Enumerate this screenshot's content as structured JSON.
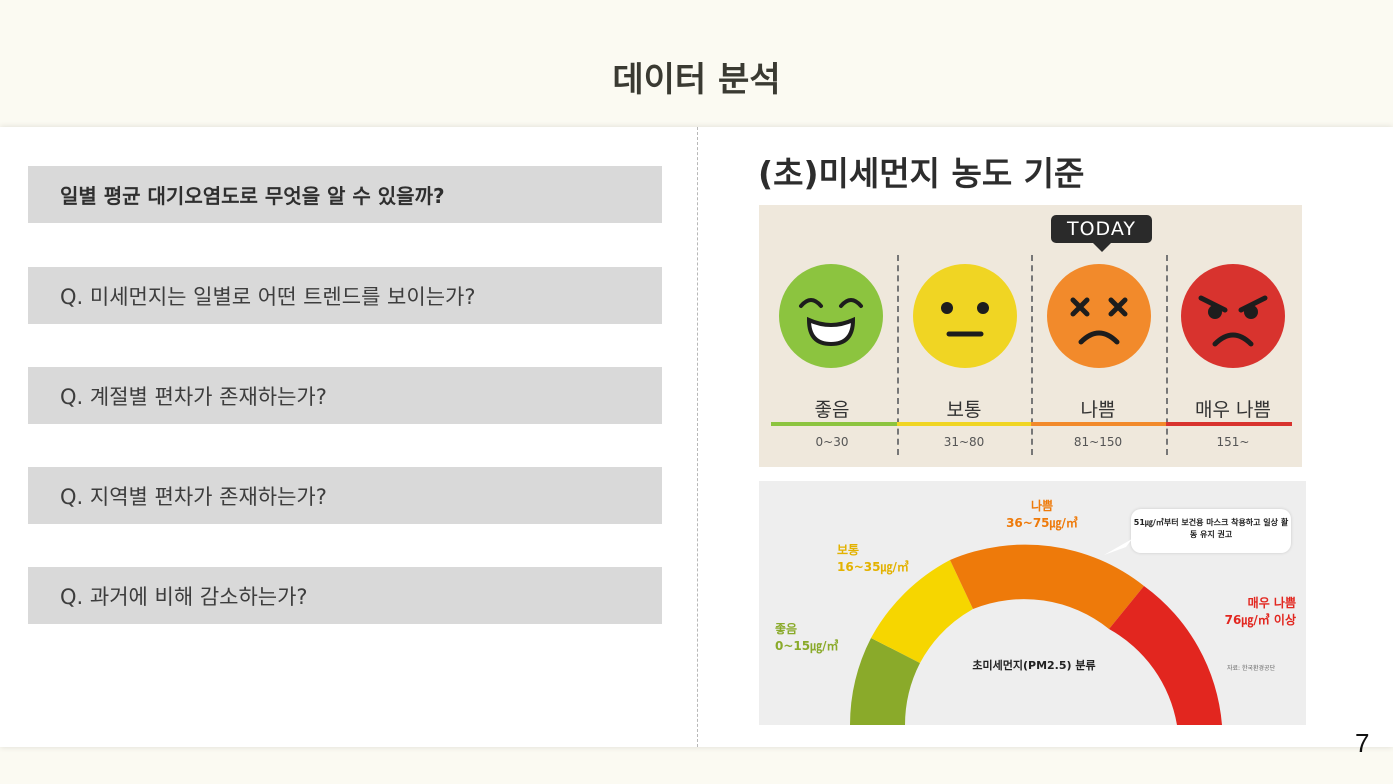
{
  "slide": {
    "title": "데이터 분석",
    "page_number": "7"
  },
  "left": {
    "heading": "일별 평균 대기오염도로 무엇을 알 수 있을까?",
    "questions": [
      "Q. 미세먼지는 일별로 어떤 트렌드를 보이는가?",
      "Q. 계절별 편차가 존재하는가?",
      "Q. 지역별 편차가 존재하는가?",
      "Q. 과거에 비해 감소하는가?"
    ]
  },
  "right": {
    "title": "(초)미세먼지 농도 기준",
    "faces_panel": {
      "badge": "TODAY",
      "levels": [
        {
          "label": "좋음",
          "range": "0~30",
          "color": "#8cc43f"
        },
        {
          "label": "보통",
          "range": "31~80",
          "color": "#f0d523"
        },
        {
          "label": "나쁨",
          "range": "81~150",
          "color": "#f28a2b"
        },
        {
          "label": "매우 나쁨",
          "range": "151~",
          "color": "#d8332e"
        }
      ]
    },
    "gauge_panel": {
      "center_label": "초미세먼지(PM2.5) 분류",
      "bubble_text": "51㎍/㎥부터 보건용 마스크 착용하고 일상 활동 유지 권고",
      "source": "자료: 한국환경공단",
      "levels": [
        {
          "name": "좋음",
          "range": "0~15㎍/㎥",
          "color": "#8aaa2a"
        },
        {
          "name": "보통",
          "range": "16~35㎍/㎥",
          "color": "#f6d600"
        },
        {
          "name": "나쁨",
          "range": "36~75㎍/㎥",
          "color": "#ee7a0a"
        },
        {
          "name": "매우 나쁨",
          "range": "76㎍/㎥ 이상",
          "color": "#e2261f"
        }
      ]
    }
  }
}
